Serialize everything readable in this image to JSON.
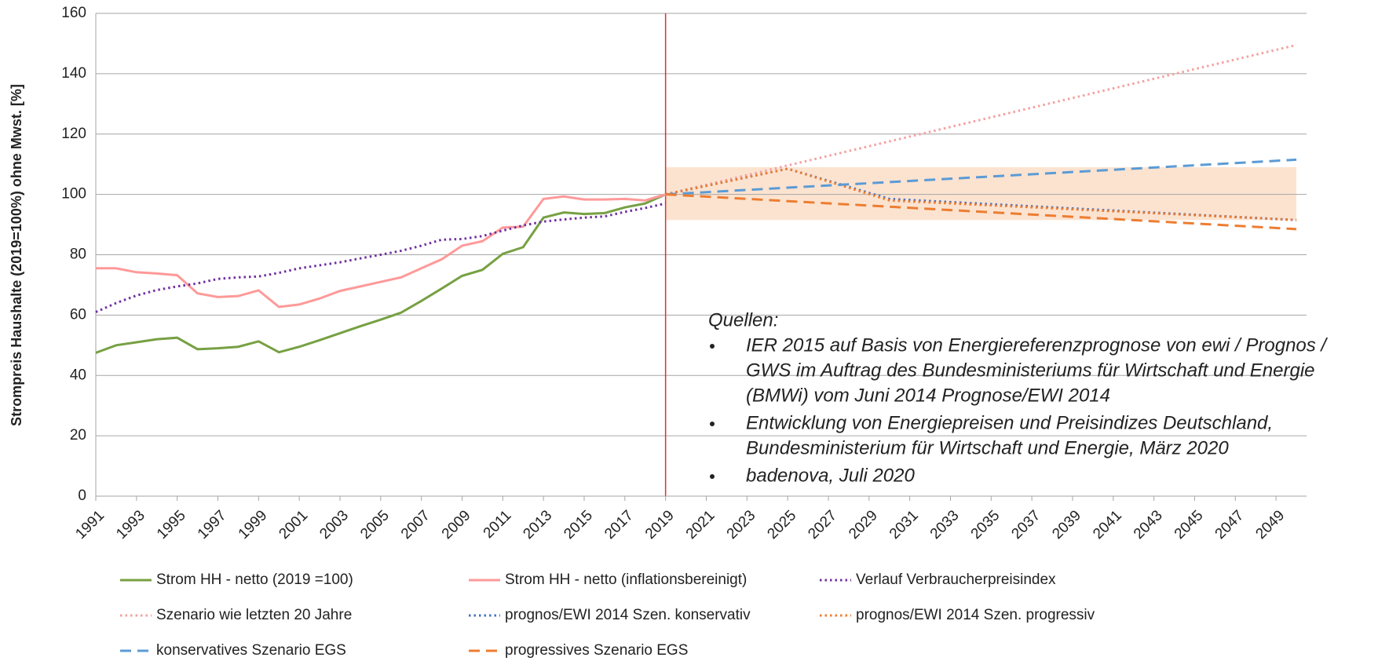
{
  "chart_data": {
    "type": "line",
    "y_label": "Strompreis Haushalte  (2019=100%) ohne Mwst. [%]",
    "xlim": [
      1991,
      2050.5
    ],
    "xticks": [
      1991,
      1993,
      1995,
      1997,
      1999,
      2001,
      2003,
      2005,
      2007,
      2009,
      2011,
      2013,
      2015,
      2017,
      2019,
      2021,
      2023,
      2025,
      2027,
      2029,
      2031,
      2033,
      2035,
      2037,
      2039,
      2041,
      2043,
      2045,
      2047,
      2049
    ],
    "ylim": [
      0,
      160
    ],
    "yticks": [
      0,
      20,
      40,
      60,
      80,
      100,
      120,
      140,
      160
    ],
    "grid": true,
    "marker_x": 2019,
    "band": {
      "x": [
        2019,
        2050
      ],
      "range": [
        91.5,
        109
      ],
      "color": "#fce3d0"
    },
    "series": [
      {
        "name": "Strom HH - netto (2019 =100)",
        "color": "#77a043",
        "style": "solid",
        "x": [
          1991,
          1992,
          1993,
          1994,
          1995,
          1996,
          1997,
          1998,
          1999,
          2000,
          2001,
          2002,
          2003,
          2004,
          2005,
          2006,
          2007,
          2008,
          2009,
          2010,
          2011,
          2012,
          2013,
          2014,
          2015,
          2016,
          2017,
          2018,
          2019
        ],
        "values": [
          47.5,
          50,
          51,
          52,
          52.5,
          48.7,
          49,
          49.5,
          51.3,
          47.7,
          49.5,
          51.7,
          54,
          56.3,
          58.5,
          60.8,
          64.7,
          68.8,
          73,
          75,
          80.3,
          82.5,
          92.3,
          94,
          93.5,
          93.8,
          95.7,
          97,
          100
        ]
      },
      {
        "name": "Strom HH - netto (inflationsbereinigt)",
        "color": "#ff9999",
        "style": "solid",
        "x": [
          1991,
          1992,
          1993,
          1994,
          1995,
          1996,
          1997,
          1998,
          1999,
          2000,
          2001,
          2002,
          2003,
          2004,
          2005,
          2006,
          2007,
          2008,
          2009,
          2010,
          2011,
          2012,
          2013,
          2014,
          2015,
          2016,
          2017,
          2018,
          2019
        ],
        "values": [
          75.5,
          75.5,
          74.2,
          73.8,
          73.2,
          67.2,
          66,
          66.3,
          68.2,
          62.7,
          63.5,
          65.5,
          68,
          69.5,
          71,
          72.5,
          75.5,
          78.5,
          83,
          84.5,
          89,
          89.3,
          98.5,
          99.3,
          98.3,
          98.3,
          98.5,
          98,
          100
        ]
      },
      {
        "name": "Verlauf Verbraucherpreisindex",
        "color": "#7030a0",
        "style": "dotted",
        "x": [
          1991,
          1992,
          1993,
          1994,
          1995,
          1996,
          1997,
          1998,
          1999,
          2000,
          2001,
          2002,
          2003,
          2004,
          2005,
          2006,
          2007,
          2008,
          2009,
          2010,
          2011,
          2012,
          2013,
          2014,
          2015,
          2016,
          2017,
          2018,
          2019
        ],
        "values": [
          61,
          64,
          66.5,
          68.3,
          69.5,
          70.5,
          72,
          72.5,
          72.8,
          74,
          75.5,
          76.5,
          77.5,
          78.8,
          80,
          81.3,
          83,
          85,
          85.2,
          86.2,
          88,
          89.7,
          91,
          91.7,
          92.3,
          92.7,
          94.2,
          95.5,
          97
        ]
      },
      {
        "name": "Szenario wie letzten 20 Jahre",
        "color": "#f4a0a0",
        "style": "dotted",
        "x": [
          2019,
          2050
        ],
        "values": [
          100,
          149.5
        ]
      },
      {
        "name": "prognos/EWI 2014 Szen. konservativ",
        "color": "#4472c4",
        "style": "dotted",
        "x": [
          2019,
          2025,
          2030,
          2050
        ],
        "values": [
          100,
          108.5,
          98.5,
          91.5
        ]
      },
      {
        "name": "prognos/EWI 2014 Szen. progressiv",
        "color": "#ed7d31",
        "style": "dotted",
        "x": [
          2019,
          2025,
          2030,
          2050
        ],
        "values": [
          100,
          108.5,
          98,
          91.5
        ]
      },
      {
        "name": "konservatives Szenario EGS",
        "color": "#5b9bd5",
        "style": "dashed",
        "x": [
          2019,
          2050
        ],
        "values": [
          100,
          111.5
        ]
      },
      {
        "name": "progressives Szenario EGS",
        "color": "#ed7d31",
        "style": "dashed",
        "x": [
          2019,
          2050
        ],
        "values": [
          100,
          88.5
        ]
      }
    ],
    "annotation": {
      "title": "Quellen:",
      "items": [
        [
          "IER 2015 auf Basis von Energiereferenzprognose von ewi / Prognos /",
          "GWS im Auftrag des Bundesministeriums für Wirtschaft und Energie",
          "(BMWi) vom Juni 2014 Prognose/EWI 2014"
        ],
        [
          "Entwicklung von Energiepreisen und Preisindizes Deutschland,",
          "Bundesministerium für Wirtschaft und Energie, März 2020"
        ],
        [
          "badenova, Juli 2020"
        ]
      ]
    }
  }
}
